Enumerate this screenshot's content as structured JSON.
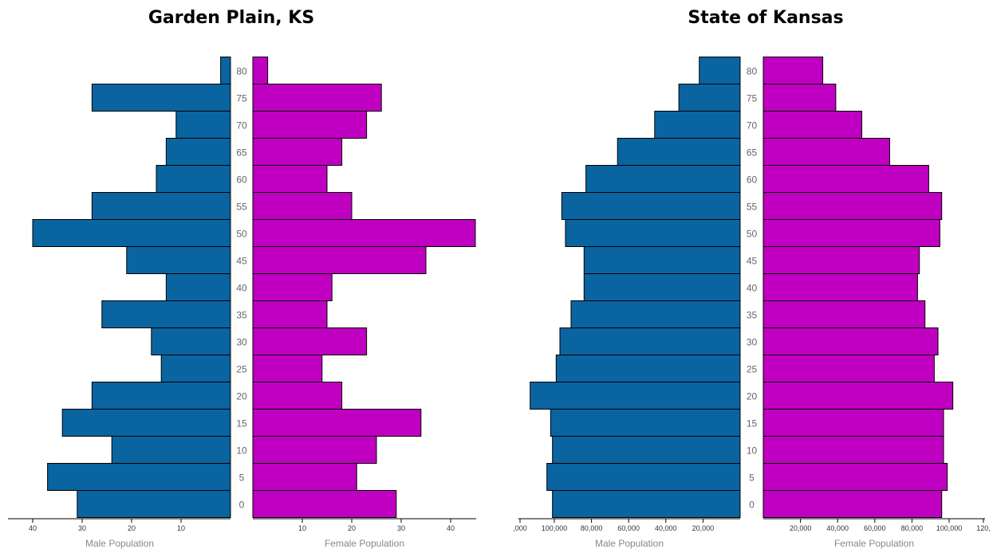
{
  "chart_data": [
    {
      "type": "bar",
      "title": "Garden Plain, KS",
      "ages": [
        "0",
        "5",
        "10",
        "15",
        "20",
        "25",
        "30",
        "35",
        "40",
        "45",
        "50",
        "55",
        "60",
        "65",
        "70",
        "75",
        "80"
      ],
      "series": [
        {
          "name": "Male Population",
          "color": "#0a64a0",
          "values": [
            31,
            37,
            24,
            34,
            28,
            14,
            16,
            26,
            13,
            21,
            40,
            28,
            15,
            13,
            11,
            28,
            2
          ]
        },
        {
          "name": "Female Population",
          "color": "#c000c0",
          "values": [
            29,
            21,
            25,
            34,
            18,
            14,
            23,
            15,
            16,
            35,
            45,
            20,
            15,
            18,
            23,
            26,
            3
          ]
        }
      ],
      "xlabel_left": "Male Population",
      "xlabel_right": "Female Population",
      "left_ticks": [
        "40",
        "30",
        "20",
        "10"
      ],
      "right_ticks": [
        "10",
        "20",
        "30",
        "40"
      ],
      "xlim": [
        0,
        45
      ]
    },
    {
      "type": "bar",
      "title": "State of Kansas",
      "ages": [
        "0",
        "5",
        "10",
        "15",
        "20",
        "25",
        "30",
        "35",
        "40",
        "45",
        "50",
        "55",
        "60",
        "65",
        "70",
        "75",
        "80"
      ],
      "series": [
        {
          "name": "Male Population",
          "color": "#0a64a0",
          "values": [
            101000,
            104000,
            101000,
            102000,
            113000,
            99000,
            97000,
            91000,
            84000,
            84000,
            94000,
            96000,
            83000,
            66000,
            46000,
            33000,
            22000
          ]
        },
        {
          "name": "Female Population",
          "color": "#c000c0",
          "values": [
            96000,
            99000,
            97000,
            97000,
            102000,
            92000,
            94000,
            87000,
            83000,
            84000,
            95000,
            96000,
            89000,
            68000,
            53000,
            39000,
            32000
          ]
        }
      ],
      "xlabel_left": "Male Population",
      "xlabel_right": "Female Population",
      "left_ticks": [
        ",000",
        "100,000",
        "80,000",
        "60,000",
        "40,000",
        "20,000"
      ],
      "right_ticks": [
        "20,000",
        "40,000",
        "60,000",
        "80,000",
        "100,000",
        "120,"
      ],
      "xlim": [
        0,
        120000
      ]
    }
  ]
}
